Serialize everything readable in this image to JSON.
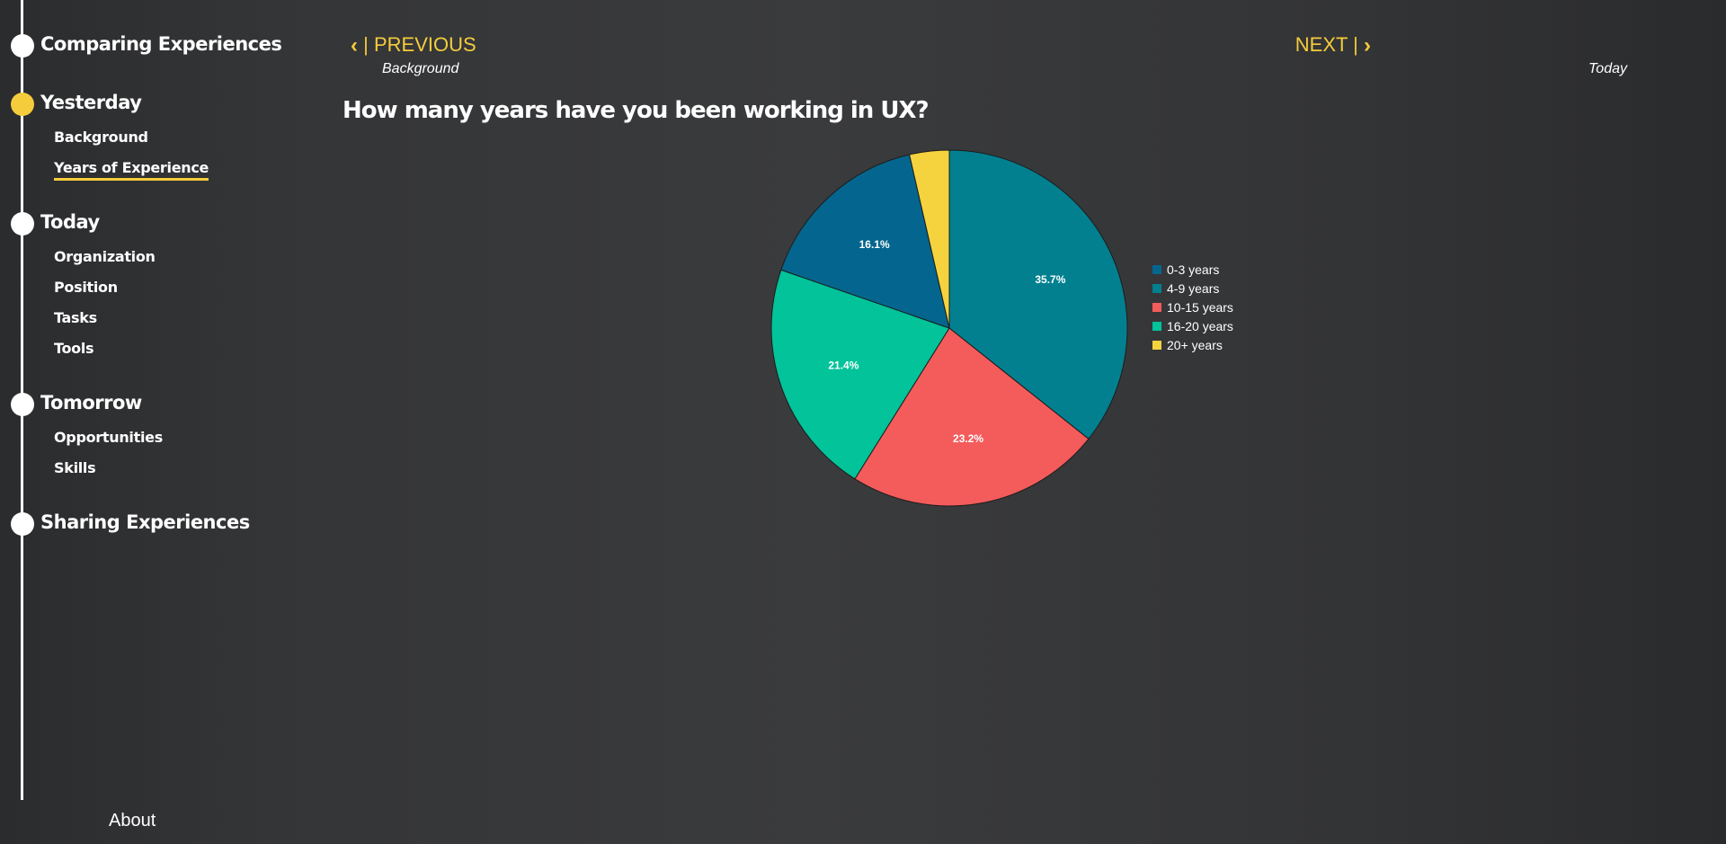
{
  "sidebar": {
    "sections": [
      {
        "title": "Comparing Experiences",
        "active": false,
        "items": []
      },
      {
        "title": "Yesterday",
        "active": true,
        "items": [
          {
            "label": "Background",
            "active": false
          },
          {
            "label": "Years of Experience",
            "active": true
          }
        ]
      },
      {
        "title": "Today",
        "active": false,
        "items": [
          {
            "label": "Organization",
            "active": false
          },
          {
            "label": "Position",
            "active": false
          },
          {
            "label": "Tasks",
            "active": false
          },
          {
            "label": "Tools",
            "active": false
          }
        ]
      },
      {
        "title": "Tomorrow",
        "active": false,
        "items": [
          {
            "label": "Opportunities",
            "active": false
          },
          {
            "label": "Skills",
            "active": false
          }
        ]
      },
      {
        "title": "Sharing Experiences",
        "active": false,
        "items": []
      }
    ],
    "about_label": "About"
  },
  "nav": {
    "prev_label": "| PREVIOUS",
    "prev_sub": "Background",
    "next_label": "NEXT |",
    "next_sub": "Today",
    "prev_icon": "chevron-left-icon",
    "next_icon": "chevron-right-icon"
  },
  "colors": {
    "accent": "#f5cc3b",
    "text": "#ffffff"
  },
  "question": "How many years have you been working in UX?",
  "chart_data": {
    "type": "pie",
    "title": "",
    "legend_position": "right",
    "slices": [
      {
        "name": "0-3 years",
        "value": 16.1,
        "label": "16.1%",
        "color": "#04668e"
      },
      {
        "name": "4-9 years",
        "value": 35.7,
        "label": "35.7%",
        "color": "#028090"
      },
      {
        "name": "10-15 years",
        "value": 23.2,
        "label": "23.2%",
        "color": "#f45b5b"
      },
      {
        "name": "16-20 years",
        "value": 21.4,
        "label": "21.4%",
        "color": "#02c39a"
      },
      {
        "name": "20+ years",
        "value": 3.6,
        "label": "",
        "color": "#f5d33f"
      }
    ],
    "draw_order": [
      "4-9 years",
      "10-15 years",
      "16-20 years",
      "0-3 years",
      "20+ years"
    ]
  }
}
